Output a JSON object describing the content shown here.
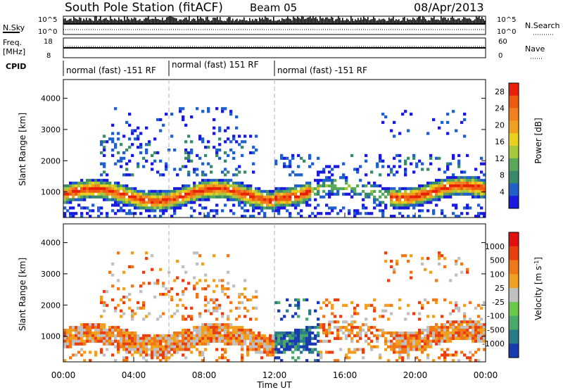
{
  "header": {
    "station": "South Pole Station (fitACF)",
    "beam": "Beam 05",
    "date": "08/Apr/2013"
  },
  "summary_panels": {
    "nsky": {
      "label": "N.Sky",
      "ticks_left": [
        "10^5",
        "10^0"
      ]
    },
    "nsearch": {
      "label": "N.Search",
      "ticks_right": [
        "10^5",
        "10^0"
      ]
    },
    "freq": {
      "label_line1": "Freq.",
      "label_line2": "[MHz]",
      "ticks_left": [
        "18",
        "8"
      ]
    },
    "nave": {
      "label": "Nave",
      "ticks_right": [
        "60",
        "0"
      ]
    },
    "cpid": {
      "label": "CPID",
      "segments": [
        {
          "text": "normal (fast) -151 RF",
          "start_hour": 0,
          "end_hour": 6
        },
        {
          "text": "normal (fast) 151 RF",
          "start_hour": 6,
          "end_hour": 12
        },
        {
          "text": "normal (fast) -151 RF",
          "start_hour": 12,
          "end_hour": 24
        }
      ]
    }
  },
  "chart_data": [
    {
      "type": "heatmap",
      "title": "",
      "xlabel": "Time UT",
      "ylabel": "Slant Range [km]",
      "xlim": [
        0,
        24
      ],
      "ylim": [
        180,
        4600
      ],
      "x_ticks": [
        "00:00",
        "04:00",
        "08:00",
        "12:00",
        "16:00",
        "20:00",
        "00:00"
      ],
      "y_ticks": [
        "1000",
        "2000",
        "3000",
        "4000"
      ],
      "colorbar": {
        "label": "Power [dB]",
        "ticks": [
          "4",
          "8",
          "12",
          "16",
          "20",
          "24",
          "28"
        ],
        "range": [
          0,
          30
        ],
        "colors": [
          "#1a1adc",
          "#2060c8",
          "#3a8a6a",
          "#5aa85a",
          "#a8c83c",
          "#e8d020",
          "#f0a020",
          "#f08020",
          "#ee5a10",
          "#e82008"
        ]
      }
    },
    {
      "type": "heatmap",
      "title": "",
      "xlabel": "Time UT",
      "ylabel": "Slant Range [km]",
      "xlim": [
        0,
        24
      ],
      "ylim": [
        180,
        4600
      ],
      "x_ticks": [
        "00:00",
        "04:00",
        "08:00",
        "12:00",
        "16:00",
        "20:00",
        "00:00"
      ],
      "y_ticks": [
        "1000",
        "2000",
        "3000",
        "4000"
      ],
      "colorbar": {
        "label": "Velocity [m s^-1]",
        "ticks": [
          "1000",
          "500",
          "100",
          "25",
          "-25",
          "-100",
          "-500",
          "-1000"
        ],
        "colors": [
          "#1a3ab0",
          "#2a7a8a",
          "#4aa86a",
          "#6ac84a",
          "#c0c0c0",
          "#f0a020",
          "#f07818",
          "#e84010",
          "#e01010"
        ]
      }
    }
  ]
}
